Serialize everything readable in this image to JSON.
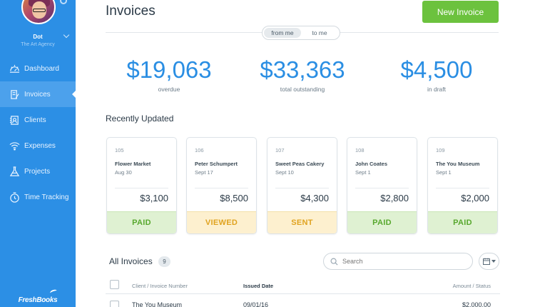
{
  "user": {
    "name": "Dot",
    "org": "The Art Agency"
  },
  "nav": [
    {
      "label": "Dashboard",
      "icon": "dashboard-icon"
    },
    {
      "label": "Invoices",
      "icon": "invoice-icon",
      "active": true
    },
    {
      "label": "Clients",
      "icon": "clients-icon"
    },
    {
      "label": "Expenses",
      "icon": "expenses-icon"
    },
    {
      "label": "Projects",
      "icon": "projects-icon"
    },
    {
      "label": "Time Tracking",
      "icon": "clock-icon"
    }
  ],
  "brand": "FreshBooks",
  "header": {
    "title": "Invoices",
    "new_button": "New Invoice"
  },
  "toggle": {
    "from": "from me",
    "to": "to me",
    "selected": "from me"
  },
  "stats": [
    {
      "value": "$19,063",
      "label": "overdue"
    },
    {
      "value": "$33,363",
      "label": "total outstanding"
    },
    {
      "value": "$4,500",
      "label": "in draft"
    }
  ],
  "recent": {
    "title": "Recently Updated",
    "cards": [
      {
        "number": "105",
        "client": "Flower Market",
        "date": "Aug 30",
        "amount": "$3,100",
        "status": "PAID"
      },
      {
        "number": "106",
        "client": "Peter Schumpert",
        "date": "Sept 17",
        "amount": "$8,500",
        "status": "VIEWED"
      },
      {
        "number": "107",
        "client": "Sweet Peas Cakery",
        "date": "Sept 10",
        "amount": "$4,300",
        "status": "SENT"
      },
      {
        "number": "108",
        "client": "John Coates",
        "date": "Sept 1",
        "amount": "$2,800",
        "status": "PAID"
      },
      {
        "number": "109",
        "client": "The You Museum",
        "date": "Sept 1",
        "amount": "$2,000",
        "status": "PAID"
      }
    ]
  },
  "all_invoices": {
    "title": "All Invoices",
    "count": "9",
    "search_placeholder": "Search",
    "columns": {
      "client": "Client / Invoice Number",
      "issued": "Issued Date",
      "amount": "Amount / Status"
    },
    "rows": [
      {
        "client": "The You Museum",
        "issued": "09/01/16",
        "amount": "$2,000.00"
      }
    ]
  },
  "colors": {
    "sidebar": "#2c8fe5",
    "accent": "#2a8ee3",
    "new_button": "#6cc23e",
    "paid": "#58a82e",
    "pending": "#e0a320"
  }
}
